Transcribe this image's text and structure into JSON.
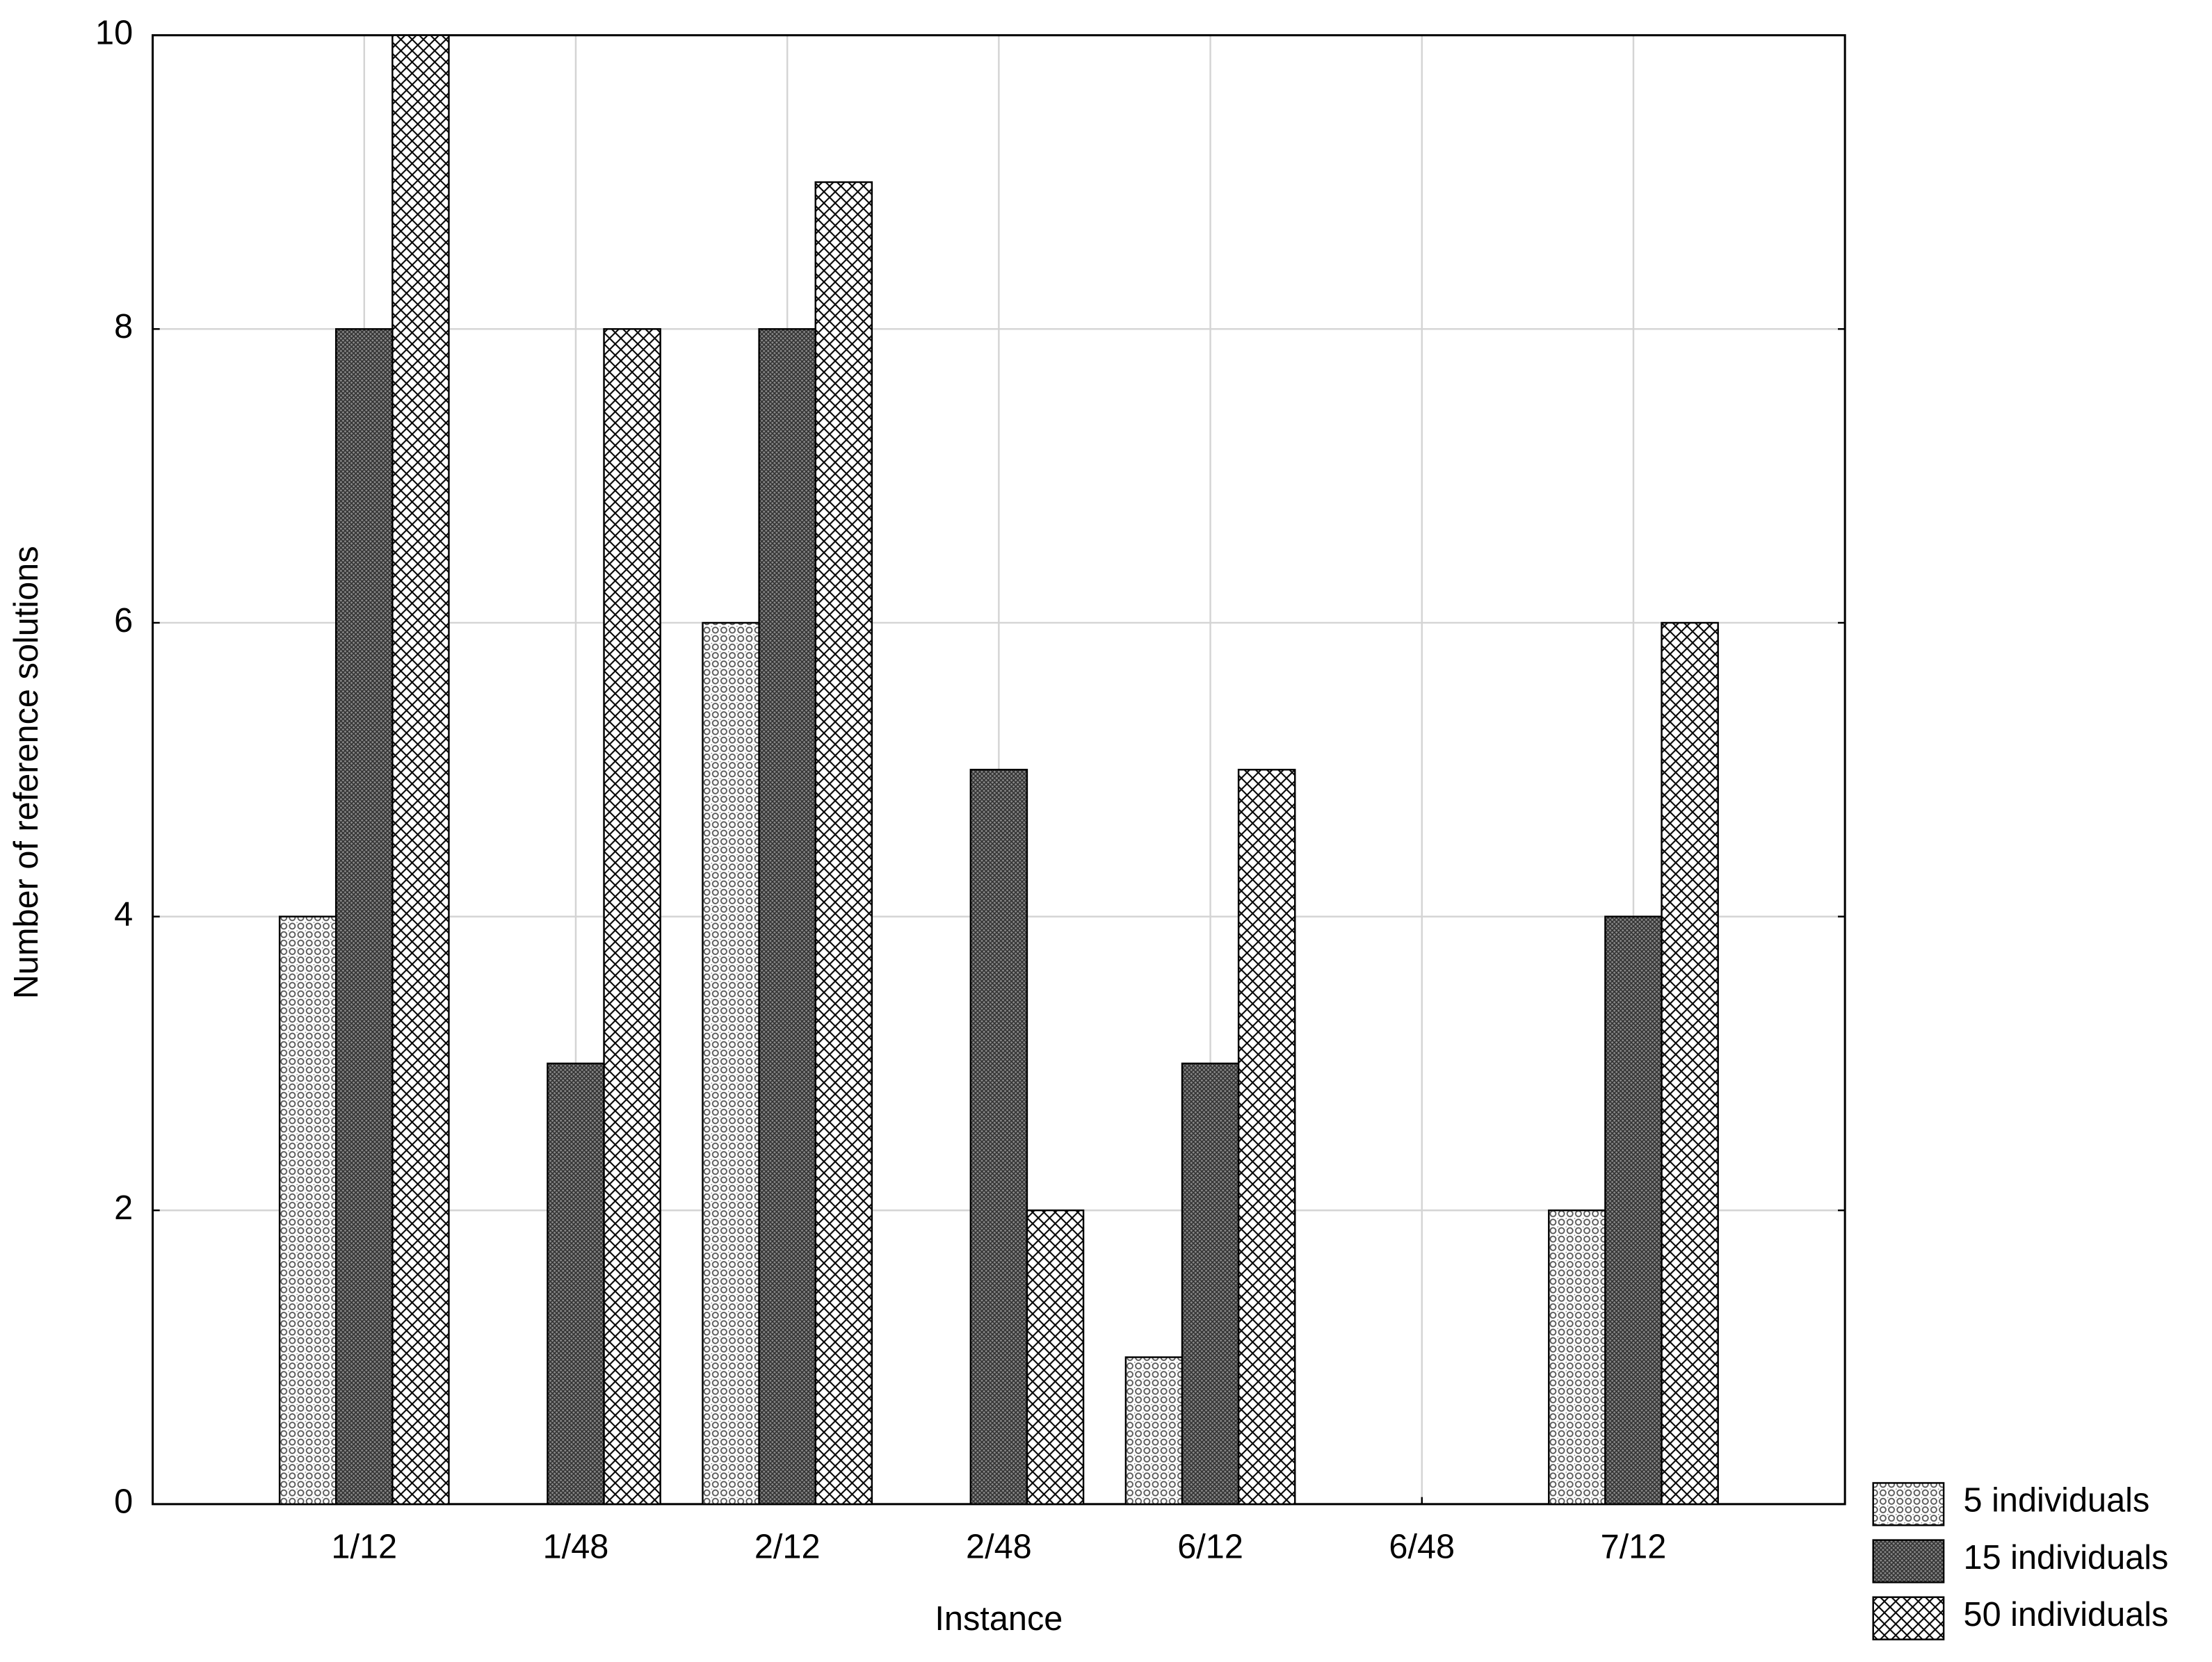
{
  "chart_data": {
    "type": "bar",
    "x_label": "Instance",
    "y_label": "Number of reference solutions",
    "categories": [
      "1/12",
      "1/48",
      "2/12",
      "2/48",
      "6/12",
      "6/48",
      "7/12"
    ],
    "series": [
      {
        "name": "5 individuals",
        "values": [
          4,
          0,
          6,
          0,
          1,
          0,
          2
        ]
      },
      {
        "name": "15 individuals",
        "values": [
          8,
          3,
          8,
          5,
          3,
          0,
          4
        ]
      },
      {
        "name": "50 individuals",
        "values": [
          10,
          8,
          9,
          2,
          5,
          0,
          6
        ]
      }
    ],
    "ylim": [
      0,
      10
    ],
    "yticks": [
      0,
      2,
      4,
      6,
      8,
      10
    ],
    "grid": true,
    "legend": "bottom-right"
  }
}
